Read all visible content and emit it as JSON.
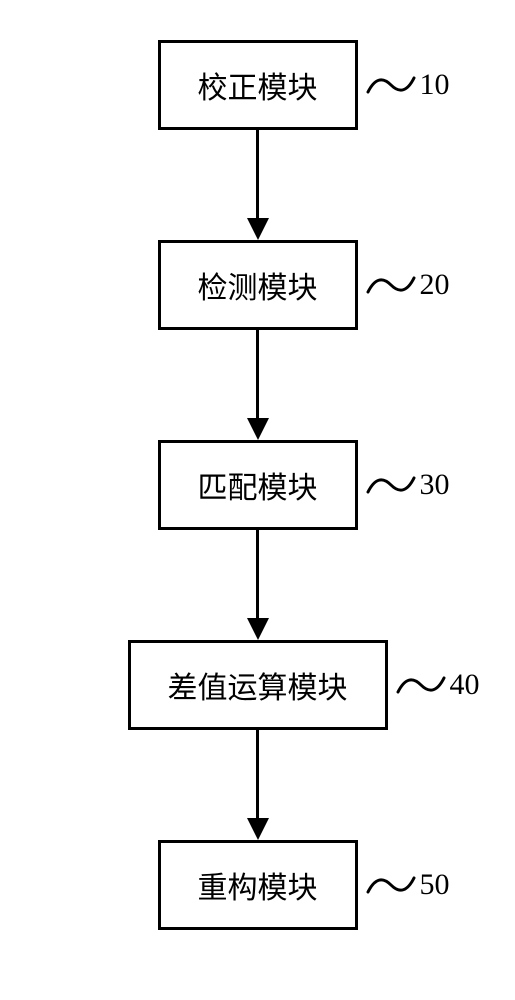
{
  "diagram": {
    "type": "flowchart",
    "direction": "vertical",
    "background_color": "#ffffff",
    "nodes": [
      {
        "id": "node1",
        "label": "校正模块",
        "number": "10",
        "wide": false
      },
      {
        "id": "node2",
        "label": "检测模块",
        "number": "20",
        "wide": false
      },
      {
        "id": "node3",
        "label": "匹配模块",
        "number": "30",
        "wide": false
      },
      {
        "id": "node4",
        "label": "差值运算模块",
        "number": "40",
        "wide": true
      },
      {
        "id": "node5",
        "label": "重构模块",
        "number": "50",
        "wide": false
      }
    ],
    "node_style": {
      "border_color": "#000000",
      "border_width": 3,
      "fill_color": "#ffffff",
      "font_size": 30,
      "font_color": "#000000",
      "font_family": "SimSun"
    },
    "arrow_style": {
      "color": "#000000",
      "line_width": 3,
      "head_width": 22,
      "head_height": 22,
      "length": 110
    },
    "label_style": {
      "tilde_color": "#000000",
      "number_font_size": 30,
      "number_color": "#000000"
    }
  }
}
